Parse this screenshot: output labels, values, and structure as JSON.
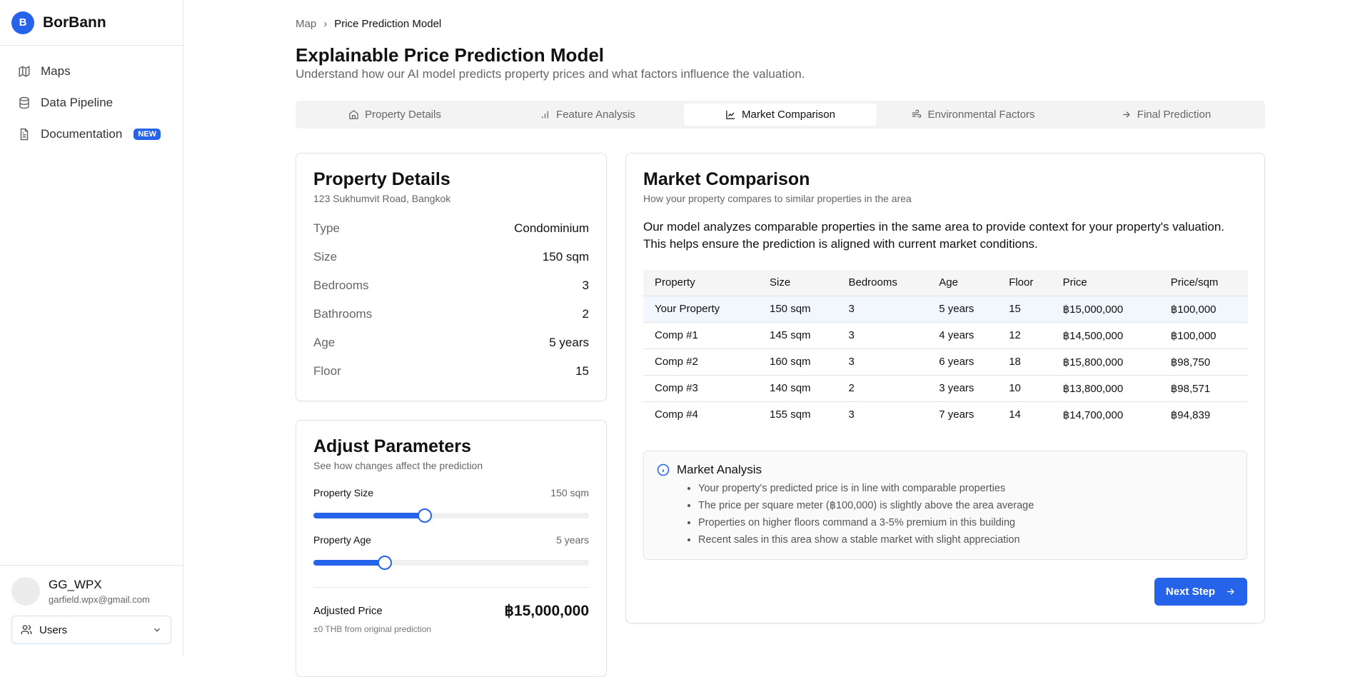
{
  "brand": {
    "logo_letter": "B",
    "name": "BorBann"
  },
  "sidebar": {
    "items": [
      {
        "label": "Maps",
        "icon": "map-icon"
      },
      {
        "label": "Data Pipeline",
        "icon": "database-icon"
      },
      {
        "label": "Documentation",
        "icon": "file-text-icon",
        "badge": "NEW"
      }
    ]
  },
  "user": {
    "name": "GG_WPX",
    "email": "garfield.wpx@gmail.com",
    "role_select": "Users"
  },
  "breadcrumb": [
    "Map",
    "Price Prediction Model"
  ],
  "header": {
    "title": "Explainable Price Prediction Model",
    "subtitle": "Understand how our AI model predicts property prices and what factors influence the valuation."
  },
  "tabs": [
    {
      "label": "Property Details",
      "icon": "home-icon"
    },
    {
      "label": "Feature Analysis",
      "icon": "bar-chart-icon"
    },
    {
      "label": "Market Comparison",
      "icon": "line-chart-icon",
      "active": true
    },
    {
      "label": "Environmental Factors",
      "icon": "wind-icon"
    },
    {
      "label": "Final Prediction",
      "icon": "arrow-right-icon"
    }
  ],
  "property": {
    "title": "Property Details",
    "address": "123 Sukhumvit Road, Bangkok",
    "fields": [
      {
        "k": "Type",
        "v": "Condominium"
      },
      {
        "k": "Size",
        "v": "150 sqm"
      },
      {
        "k": "Bedrooms",
        "v": "3"
      },
      {
        "k": "Bathrooms",
        "v": "2"
      },
      {
        "k": "Age",
        "v": "5 years"
      },
      {
        "k": "Floor",
        "v": "15"
      }
    ]
  },
  "adjust": {
    "title": "Adjust Parameters",
    "subtitle": "See how changes affect the prediction",
    "sliders": [
      {
        "label": "Property Size",
        "value": "150 sqm",
        "fraction": 0.405
      },
      {
        "label": "Property Age",
        "value": "5 years",
        "fraction": 0.26
      }
    ],
    "adjusted_label": "Adjusted Price",
    "adjusted_value": "฿15,000,000",
    "delta": "±0 THB from original prediction"
  },
  "market": {
    "title": "Market Comparison",
    "subtitle": "How your property compares to similar properties in the area",
    "intro": "Our model analyzes comparable properties in the same area to provide context for your property's valuation. This helps ensure the prediction is aligned with current market conditions.",
    "columns": [
      "Property",
      "Size",
      "Bedrooms",
      "Age",
      "Floor",
      "Price",
      "Price/sqm"
    ],
    "rows": [
      [
        "Your Property",
        "150 sqm",
        "3",
        "5 years",
        "15",
        "฿15,000,000",
        "฿100,000"
      ],
      [
        "Comp #1",
        "145 sqm",
        "3",
        "4 years",
        "12",
        "฿14,500,000",
        "฿100,000"
      ],
      [
        "Comp #2",
        "160 sqm",
        "3",
        "6 years",
        "18",
        "฿15,800,000",
        "฿98,750"
      ],
      [
        "Comp #3",
        "140 sqm",
        "2",
        "3 years",
        "10",
        "฿13,800,000",
        "฿98,571"
      ],
      [
        "Comp #4",
        "155 sqm",
        "3",
        "7 years",
        "14",
        "฿14,700,000",
        "฿94,839"
      ]
    ],
    "analysis_title": "Market Analysis",
    "analysis_points": [
      "Your property's predicted price is in line with comparable properties",
      "The price per square meter (฿100,000) is slightly above the area average",
      "Properties on higher floors command a 3-5% premium in this building",
      "Recent sales in this area show a stable market with slight appreciation"
    ],
    "next_label": "Next Step"
  },
  "colors": {
    "accent": "#2563eb"
  }
}
